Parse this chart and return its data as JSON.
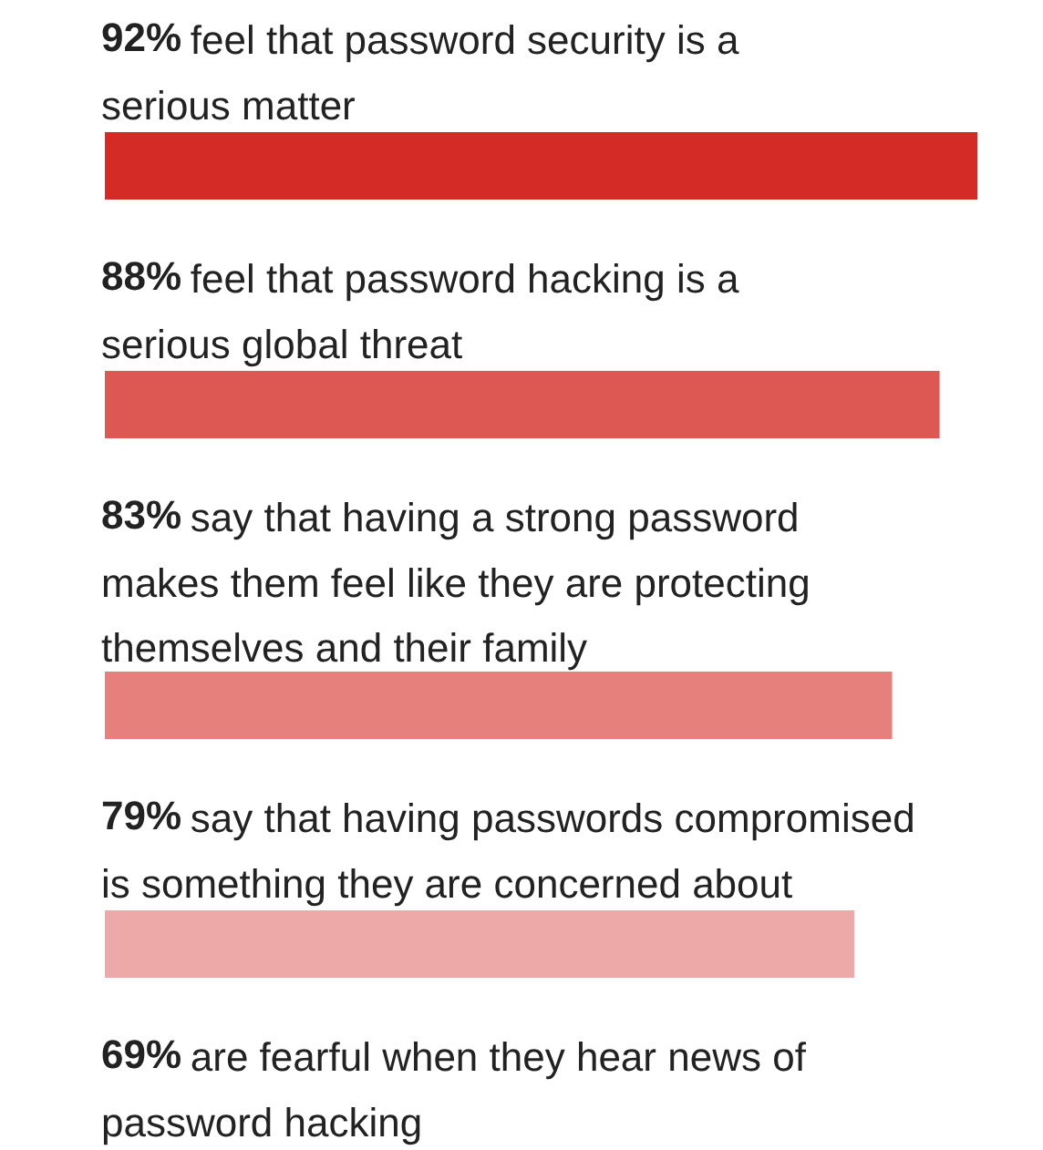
{
  "chart_data": {
    "type": "bar",
    "orientation": "horizontal",
    "categories": [
      "feel that password security is a serious matter",
      "feel that password hacking is a serious global threat",
      "say that having a strong password makes them feel like they are protecting themselves and their family",
      "say that having passwords compromised is something they are concerned about",
      "are fearful when they hear news of password hacking"
    ],
    "values": [
      92,
      88,
      83,
      79,
      null
    ],
    "value_labels": [
      "92%",
      "88%",
      "83%",
      "79%",
      "69%"
    ],
    "colors": [
      "#d52b27",
      "#dd5753",
      "#e5807c",
      "#eda9a7",
      "#f3cbca"
    ],
    "xlim": [
      0,
      99
    ],
    "tick_labels": false
  }
}
